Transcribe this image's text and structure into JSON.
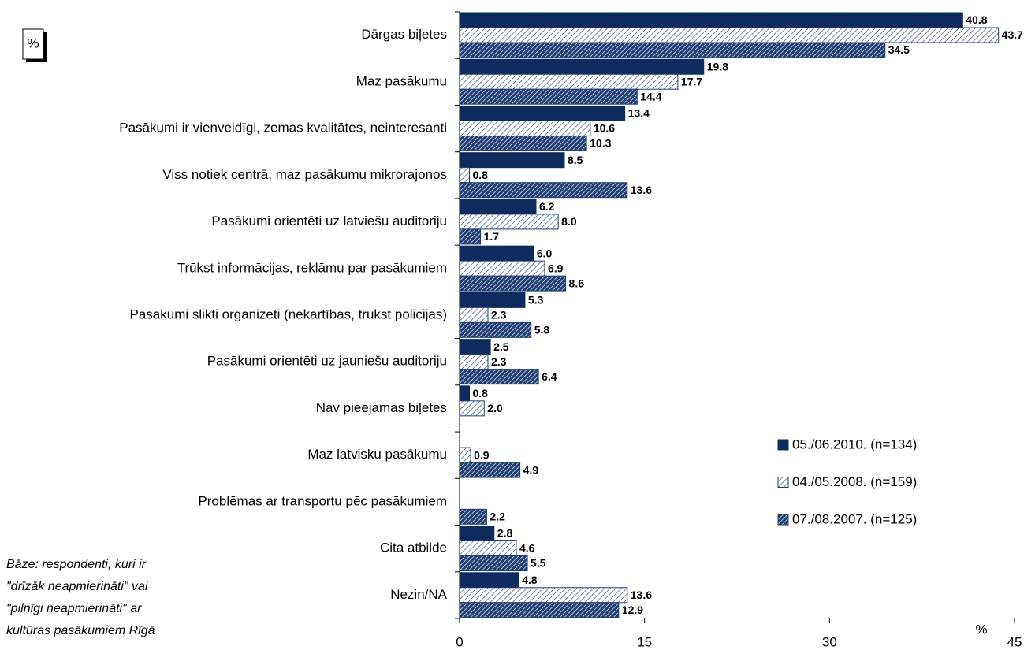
{
  "chart_data": {
    "type": "bar",
    "orientation": "horizontal",
    "categories": [
      "Dārgas biļetes",
      "Maz pasākumu",
      "Pasākumi ir vienveidīgi, zemas kvalitātes, neinteresanti",
      "Viss notiek centrā, maz pasākumu mikrorajonos",
      "Pasākumi orientēti uz latviešu auditoriju",
      "Trūkst informācijas, reklāmu par pasākumiem",
      "Pasākumi slikti organizēti (nekārtības, trūkst policijas)",
      "Pasākumi orientēti uz jauniešu auditoriju",
      "Nav pieejamas biļetes",
      "Maz latvisku pasākumu",
      "Problēmas ar transportu pēc pasākumiem",
      "Cita atbilde",
      "Nezin/NA"
    ],
    "series": [
      {
        "name": "05./06.2010. (n=134)",
        "color": "#0d2b5c",
        "pattern": "solid",
        "values": [
          40.8,
          19.8,
          13.4,
          8.5,
          6.2,
          6.0,
          5.3,
          2.5,
          0.8,
          null,
          null,
          2.8,
          4.8
        ],
        "value_labels": [
          "40.8",
          "19.8",
          "13.4",
          "8.5",
          "6.2",
          "6.0",
          "5.3",
          "2.5",
          "0.8",
          null,
          null,
          "2.8",
          "4.8"
        ]
      },
      {
        "name": "04./05.2008. (n=159)",
        "color": "#1f3f73",
        "pattern": "light-hatch",
        "values": [
          43.7,
          17.7,
          10.6,
          0.8,
          8.0,
          6.9,
          2.3,
          2.3,
          2.0,
          0.9,
          null,
          4.6,
          13.6
        ],
        "value_labels": [
          "43.7",
          "17.7",
          "10.6",
          "0.8",
          "8.0",
          "6.9",
          "2.3",
          "2.3",
          "2.0",
          "0.9",
          null,
          "4.6",
          "13.6"
        ]
      },
      {
        "name": "07./08.2007. (n=125)",
        "color": "#1f3f73",
        "pattern": "dense-hatch",
        "values": [
          34.5,
          14.4,
          10.3,
          13.6,
          1.7,
          8.6,
          5.8,
          6.4,
          null,
          4.9,
          2.2,
          5.5,
          12.9
        ],
        "value_labels": [
          "34.5",
          "14.4",
          "10.3",
          "13.6",
          "1.7",
          "8.6",
          "5.8",
          "6.4",
          null,
          "4.9",
          "2.2",
          "5.5",
          "12.9"
        ]
      }
    ],
    "xlim": [
      0,
      45
    ],
    "xticks": [
      0,
      15,
      30,
      45
    ],
    "xlabel": "%",
    "unit_box": "%",
    "legend": "right",
    "footnote": [
      "Bāze: respondenti, kuri ir",
      "\"drīzāk neapmierināti\" vai",
      "\"pilnīgi neapmierināti\" ar",
      "kultūras pasākumiem Rīgā"
    ]
  }
}
